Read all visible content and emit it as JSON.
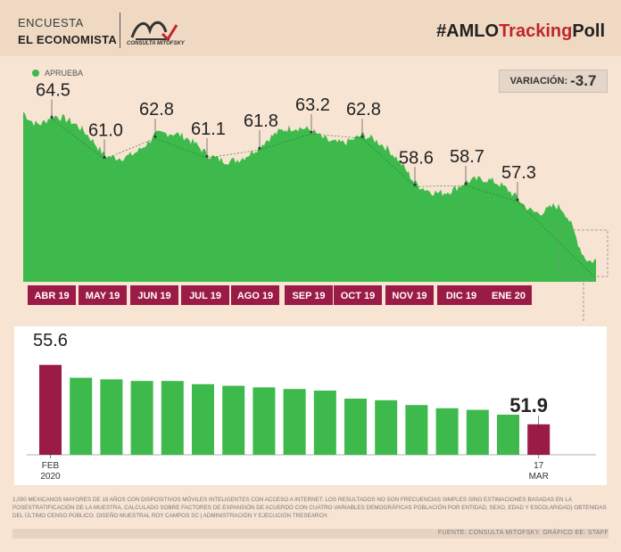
{
  "header": {
    "line1": "ENCUESTA",
    "line2": "EL ECONOMISTA",
    "logo_text": "CONSULTA MITOFSKY",
    "hashtag_prefix": "#AMLO",
    "hashtag_highlight": "Tracking",
    "hashtag_suffix": "Poll"
  },
  "variation": {
    "label": "VARIACIÓN:",
    "value": "-3.7"
  },
  "colors": {
    "green": "#3dba4b",
    "maroon": "#9b1b47",
    "background": "#f7e4d3"
  },
  "chart_data": [
    {
      "type": "area",
      "series": [
        {
          "name": "APRUEBA"
        }
      ],
      "x": [
        "ABR 19",
        "MAY 19",
        "JUN 19",
        "JUL 19",
        "AGO 19",
        "SEP 19",
        "OCT 19",
        "NOV 19",
        "DIC 19",
        "ENE 20"
      ],
      "annotations": [
        {
          "label": "64.5",
          "value": 64.5
        },
        {
          "label": "61.0",
          "value": 61.0
        },
        {
          "label": "62.8",
          "value": 62.8
        },
        {
          "label": "61.1",
          "value": 61.1
        },
        {
          "label": "61.8",
          "value": 61.8
        },
        {
          "label": "63.2",
          "value": 63.2
        },
        {
          "label": "62.8",
          "value": 62.8
        },
        {
          "label": "58.6",
          "value": 58.6
        },
        {
          "label": "58.7",
          "value": 58.7
        },
        {
          "label": "57.3",
          "value": 57.3
        }
      ],
      "ylim": [
        50,
        66
      ]
    },
    {
      "type": "bar",
      "values": [
        55.6,
        54.8,
        54.7,
        54.6,
        54.6,
        54.4,
        54.3,
        54.2,
        54.1,
        54.0,
        53.5,
        53.4,
        53.1,
        52.9,
        52.8,
        52.5,
        51.9
      ],
      "first_label": "55.6",
      "last_label": "51.9",
      "start_label": [
        "FEB",
        "2020"
      ],
      "end_label": [
        "17",
        "MAR"
      ],
      "ylim": [
        50,
        56
      ]
    }
  ],
  "footnote": "1,000 MEXICANOS MAYORES DE 18 AÑOS CON DISPOSITIVOS MÓVILES INTELIGENTES CON ACCESO A INTERNET. LOS RESULTADOS NO SON FRECUENCIAS SIMPLES SINO ESTIMACIONES BASADAS EN LA POSESTRATIFICACIÓN DE LA MUESTRA, CALCULADO SOBRE FACTORES DE EXPANSIÓN DE ACUERDO CON CUATRO VARIABLES DEMOGRÁFICAS POBLACIÓN POR ENTIDAD, SEXO, EDAD Y ESCOLARIDAD) OBTENIDAS DEL ÚLTIMO CENSO PÚBLICO. DISEÑO MUESTRAL ROY CAMPOS SC | ADMINISTRACIÓN Y EJECUCIÓN TRESEARCH.",
  "source": "FUENTE: CONSULTA MITOFSKY. GRÁFICO EE: STAFF"
}
